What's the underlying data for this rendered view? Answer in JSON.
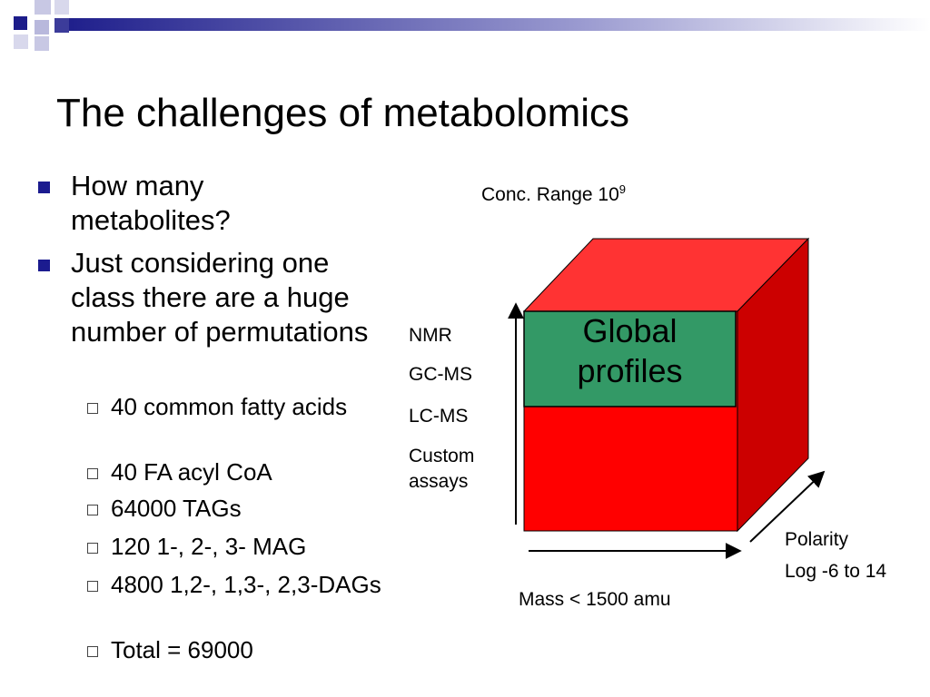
{
  "slide": {
    "title": "The challenges of metabolomics",
    "bullets": [
      {
        "text": "How many metabolites?"
      },
      {
        "text": "Just considering one class there are a huge number of permutations",
        "subitems": [
          "40 common fatty acids",
          "40 FA acyl CoA",
          "64000 TAGs",
          "120 1-, 2-, 3- MAG",
          "4800 1,2-, 1,3-, 2,3-DAGs",
          "Total = 69000"
        ]
      }
    ]
  },
  "diagram": {
    "conc_range_label": "Conc. Range 10",
    "conc_range_exp": "9",
    "techniques": [
      "NMR",
      "GC-MS",
      "LC-MS",
      "Custom assays"
    ],
    "inner_box_label_line1": "Global",
    "inner_box_label_line2": "profiles",
    "polarity_label": "Polarity",
    "polarity_range": "Log -6 to 14",
    "mass_label": "Mass < 1500 amu",
    "colors": {
      "front": "#ff0000",
      "top": "#ff3333",
      "side": "#cc0000",
      "inner": "#339966",
      "bullet": "#1b1b8f"
    }
  }
}
